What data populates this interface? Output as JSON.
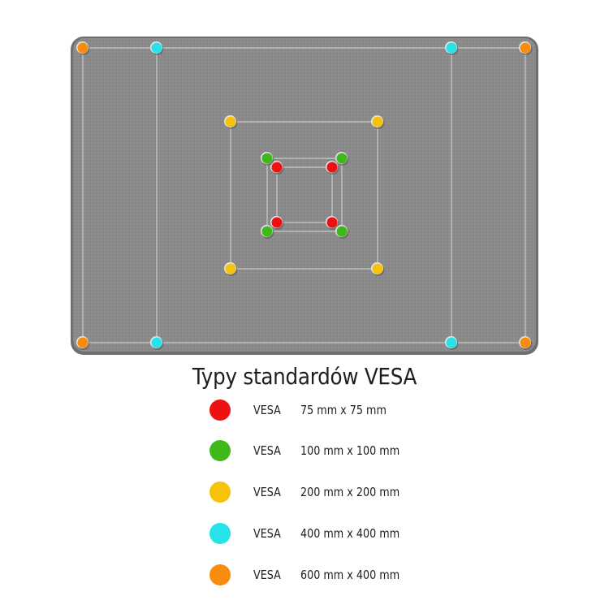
{
  "title": "Typy standardów VESA",
  "colors": {
    "panel": "#8a8a8a",
    "panel_edge": "#6f6f6f",
    "guide_line": "#d8d8d8"
  },
  "standards": [
    {
      "key": "vesa-75",
      "label": "VESA",
      "size": "75 mm x 75 mm",
      "color": "#ee1111",
      "icon": "red-dot-icon"
    },
    {
      "key": "vesa-100",
      "label": "VESA",
      "size": "100 mm x 100 mm",
      "color": "#3fb81b",
      "icon": "green-dot-icon"
    },
    {
      "key": "vesa-200",
      "label": "VESA",
      "size": "200 mm x 200 mm",
      "color": "#f7c20a",
      "icon": "yellow-dot-icon"
    },
    {
      "key": "vesa-400",
      "label": "VESA",
      "size": "400 mm x 400 mm",
      "color": "#25e3e8",
      "icon": "cyan-dot-icon"
    },
    {
      "key": "vesa-600",
      "label": "VESA",
      "size": "600 mm x 400 mm",
      "color": "#f98b0e",
      "icon": "orange-dot-icon"
    }
  ]
}
